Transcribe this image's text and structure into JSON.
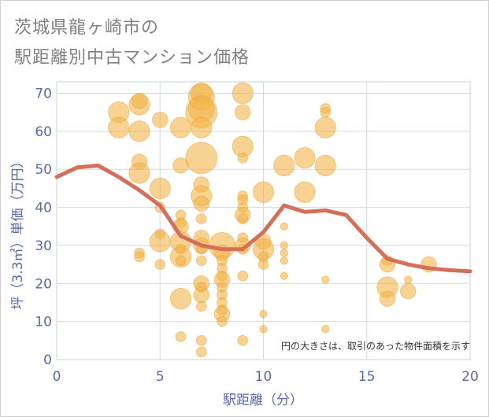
{
  "title_line1": "茨城県龍ヶ崎市の",
  "title_line2": "駅距離別中古マンション価格",
  "chart_data": {
    "type": "scatter",
    "xlabel": "駅距離（分）",
    "ylabel": "坪（3.3㎡）単価（万円）",
    "xlim": [
      0,
      20
    ],
    "ylim": [
      0,
      73
    ],
    "xticks": [
      0,
      5,
      10,
      15,
      20
    ],
    "yticks": [
      0,
      10,
      20,
      30,
      40,
      50,
      60,
      70
    ],
    "grid": true,
    "note": "円の大きさは、取引のあった物件面積を示す",
    "colors": {
      "bubble": "#f2b44a",
      "line": "#d4705a",
      "grid": "#d0d8e8",
      "tick": "#5a6aa0"
    },
    "bubbles": [
      {
        "x": 3,
        "y": 65,
        "s": 3
      },
      {
        "x": 3,
        "y": 61,
        "s": 3
      },
      {
        "x": 4,
        "y": 67,
        "s": 3
      },
      {
        "x": 4,
        "y": 68,
        "s": 2
      },
      {
        "x": 4,
        "y": 60,
        "s": 3
      },
      {
        "x": 4,
        "y": 52,
        "s": 2
      },
      {
        "x": 4,
        "y": 49,
        "s": 3
      },
      {
        "x": 4,
        "y": 28,
        "s": 1
      },
      {
        "x": 4,
        "y": 27,
        "s": 1
      },
      {
        "x": 5,
        "y": 63,
        "s": 2
      },
      {
        "x": 5,
        "y": 45,
        "s": 3
      },
      {
        "x": 5,
        "y": 40,
        "s": 1
      },
      {
        "x": 5,
        "y": 33,
        "s": 1
      },
      {
        "x": 5,
        "y": 31,
        "s": 3
      },
      {
        "x": 5,
        "y": 25,
        "s": 1
      },
      {
        "x": 6,
        "y": 61,
        "s": 3
      },
      {
        "x": 6,
        "y": 51,
        "s": 2
      },
      {
        "x": 6,
        "y": 38,
        "s": 1
      },
      {
        "x": 6,
        "y": 36,
        "s": 1
      },
      {
        "x": 6,
        "y": 35,
        "s": 2
      },
      {
        "x": 6,
        "y": 31,
        "s": 3
      },
      {
        "x": 6,
        "y": 29,
        "s": 1
      },
      {
        "x": 6,
        "y": 27,
        "s": 3
      },
      {
        "x": 6,
        "y": 26,
        "s": 1
      },
      {
        "x": 6,
        "y": 16,
        "s": 3
      },
      {
        "x": 6,
        "y": 6,
        "s": 1
      },
      {
        "x": 7,
        "y": 70,
        "s": 3
      },
      {
        "x": 7,
        "y": 69,
        "s": 4
      },
      {
        "x": 7,
        "y": 66,
        "s": 4
      },
      {
        "x": 7,
        "y": 65,
        "s": 5
      },
      {
        "x": 7,
        "y": 61,
        "s": 3
      },
      {
        "x": 7,
        "y": 53,
        "s": 5
      },
      {
        "x": 7,
        "y": 46,
        "s": 2
      },
      {
        "x": 7,
        "y": 43,
        "s": 3
      },
      {
        "x": 7,
        "y": 41,
        "s": 2
      },
      {
        "x": 7,
        "y": 37,
        "s": 1
      },
      {
        "x": 7,
        "y": 32,
        "s": 2
      },
      {
        "x": 7,
        "y": 30,
        "s": 2
      },
      {
        "x": 7,
        "y": 29,
        "s": 1
      },
      {
        "x": 7,
        "y": 26,
        "s": 1
      },
      {
        "x": 7,
        "y": 20,
        "s": 2
      },
      {
        "x": 7,
        "y": 19,
        "s": 1
      },
      {
        "x": 7,
        "y": 17,
        "s": 2
      },
      {
        "x": 7,
        "y": 14,
        "s": 1
      },
      {
        "x": 7,
        "y": 5,
        "s": 1
      },
      {
        "x": 7,
        "y": 2,
        "s": 1
      },
      {
        "x": 8,
        "y": 30,
        "s": 4
      },
      {
        "x": 8,
        "y": 28,
        "s": 2
      },
      {
        "x": 8,
        "y": 26,
        "s": 1
      },
      {
        "x": 8,
        "y": 24,
        "s": 1
      },
      {
        "x": 8,
        "y": 22,
        "s": 1
      },
      {
        "x": 8,
        "y": 21,
        "s": 2
      },
      {
        "x": 8,
        "y": 19,
        "s": 1
      },
      {
        "x": 8,
        "y": 17,
        "s": 1
      },
      {
        "x": 8,
        "y": 15,
        "s": 1
      },
      {
        "x": 8,
        "y": 13,
        "s": 1
      },
      {
        "x": 8,
        "y": 12,
        "s": 2
      },
      {
        "x": 8,
        "y": 10,
        "s": 1
      },
      {
        "x": 9,
        "y": 70,
        "s": 3
      },
      {
        "x": 9,
        "y": 65,
        "s": 2
      },
      {
        "x": 9,
        "y": 56,
        "s": 3
      },
      {
        "x": 9,
        "y": 53,
        "s": 1
      },
      {
        "x": 9,
        "y": 43,
        "s": 1
      },
      {
        "x": 9,
        "y": 42,
        "s": 1
      },
      {
        "x": 9,
        "y": 40,
        "s": 1
      },
      {
        "x": 9,
        "y": 38,
        "s": 2
      },
      {
        "x": 9,
        "y": 37,
        "s": 1
      },
      {
        "x": 9,
        "y": 32,
        "s": 1
      },
      {
        "x": 9,
        "y": 30,
        "s": 2
      },
      {
        "x": 9,
        "y": 29,
        "s": 1
      },
      {
        "x": 9,
        "y": 22,
        "s": 1
      },
      {
        "x": 9,
        "y": 5,
        "s": 1
      },
      {
        "x": 10,
        "y": 44,
        "s": 3
      },
      {
        "x": 10,
        "y": 31,
        "s": 2
      },
      {
        "x": 10,
        "y": 29,
        "s": 3
      },
      {
        "x": 10,
        "y": 27,
        "s": 1
      },
      {
        "x": 10,
        "y": 25,
        "s": 1
      },
      {
        "x": 10,
        "y": 12,
        "s": 0.5
      },
      {
        "x": 10,
        "y": 8,
        "s": 0.5
      },
      {
        "x": 11,
        "y": 35,
        "s": 0.5
      },
      {
        "x": 11,
        "y": 30,
        "s": 0.5
      },
      {
        "x": 11,
        "y": 28,
        "s": 0.5
      },
      {
        "x": 11,
        "y": 26,
        "s": 0.5
      },
      {
        "x": 11,
        "y": 22,
        "s": 0.5
      },
      {
        "x": 11,
        "y": 51,
        "s": 3
      },
      {
        "x": 12,
        "y": 53,
        "s": 3
      },
      {
        "x": 12,
        "y": 44,
        "s": 3
      },
      {
        "x": 13,
        "y": 66,
        "s": 1
      },
      {
        "x": 13,
        "y": 65,
        "s": 1
      },
      {
        "x": 13,
        "y": 61,
        "s": 3
      },
      {
        "x": 13,
        "y": 51,
        "s": 3
      },
      {
        "x": 13,
        "y": 21,
        "s": 0.5
      },
      {
        "x": 13,
        "y": 8,
        "s": 0.5
      },
      {
        "x": 16,
        "y": 26,
        "s": 1
      },
      {
        "x": 16,
        "y": 25,
        "s": 2
      },
      {
        "x": 16,
        "y": 19,
        "s": 3
      },
      {
        "x": 16,
        "y": 16,
        "s": 2
      },
      {
        "x": 17,
        "y": 21,
        "s": 0.5
      },
      {
        "x": 17,
        "y": 18,
        "s": 2
      },
      {
        "x": 18,
        "y": 25,
        "s": 2
      }
    ],
    "line": {
      "x": [
        0,
        1,
        2,
        3,
        4,
        5,
        6,
        7,
        8,
        9,
        10,
        11,
        12,
        13,
        14,
        15,
        16,
        17,
        18,
        19,
        20
      ],
      "y": [
        48,
        50.5,
        51,
        48,
        44.5,
        40.5,
        32.5,
        30,
        29,
        29,
        33.5,
        40.5,
        38.8,
        39.2,
        38,
        32,
        26.5,
        25,
        24,
        23.5,
        23.2
      ]
    }
  }
}
